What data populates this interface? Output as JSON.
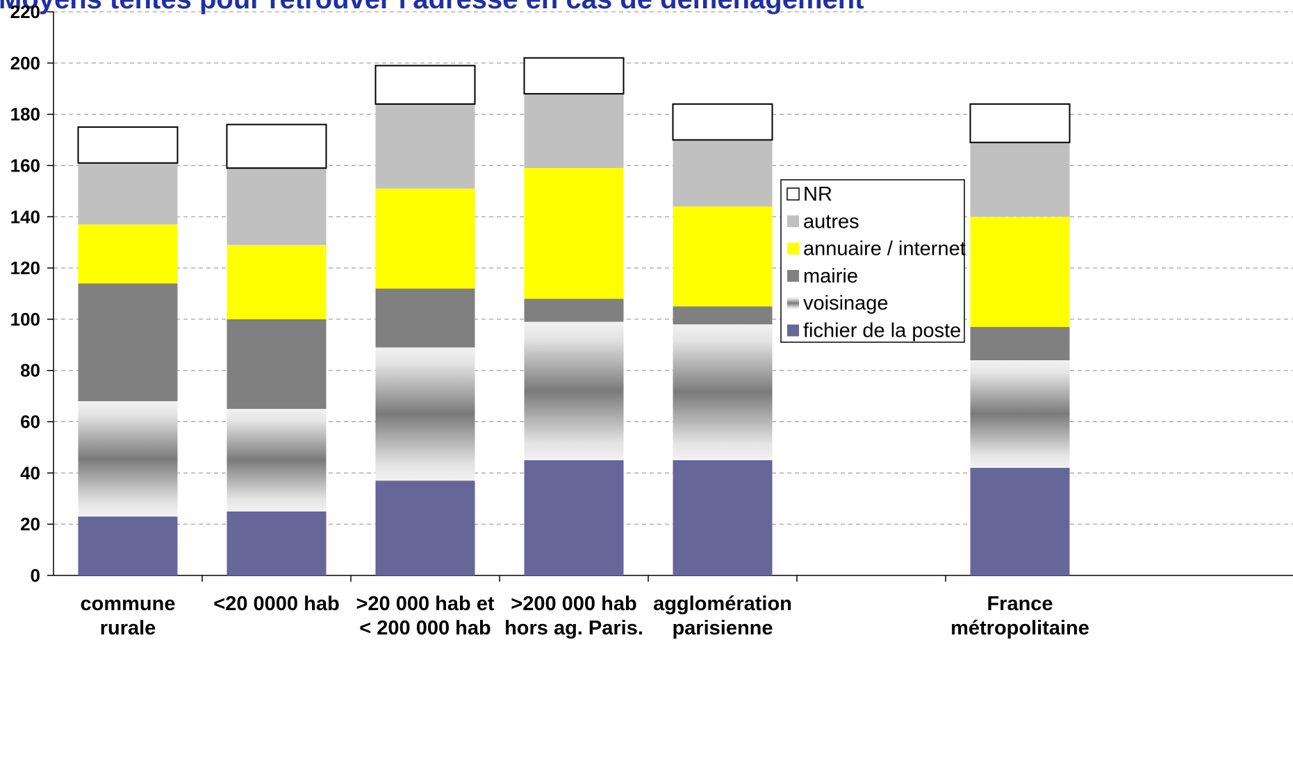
{
  "chart_data": {
    "type": "bar",
    "stacked": true,
    "title": "Moyens tentés pour retrouver l'adresse en cas de déménagement",
    "categories": [
      [
        "commune",
        "rurale"
      ],
      [
        "<20 0000 hab"
      ],
      [
        ">20 000 hab et",
        "< 200 000 hab"
      ],
      [
        ">200 000 hab",
        "hors ag. Paris."
      ],
      [
        "agglomération",
        "parisienne"
      ],
      [
        ""
      ],
      [
        "France",
        "métropolitaine"
      ]
    ],
    "ylim": [
      0,
      220
    ],
    "yticks": [
      0,
      20,
      40,
      60,
      80,
      100,
      120,
      140,
      160,
      180,
      200,
      220
    ],
    "grid": true,
    "legend_position": "right",
    "series": [
      {
        "name": "fichier de la poste",
        "color": "#666699",
        "values": [
          23,
          25,
          37,
          45,
          45,
          null,
          42
        ]
      },
      {
        "name": "voisinage",
        "color": "gradient-gray",
        "values": [
          45,
          40,
          52,
          54,
          53,
          null,
          42
        ]
      },
      {
        "name": "mairie",
        "color": "#808080",
        "values": [
          46,
          35,
          23,
          9,
          7,
          null,
          13
        ]
      },
      {
        "name": "annuaire / internet",
        "color": "#ffff00",
        "values": [
          23,
          29,
          39,
          51,
          39,
          null,
          43
        ]
      },
      {
        "name": "autres",
        "color": "#c0c0c0",
        "values": [
          24,
          30,
          33,
          29,
          26,
          null,
          29
        ]
      },
      {
        "name": "NR",
        "color": "#ffffff",
        "values": [
          14,
          17,
          15,
          14,
          14,
          null,
          15
        ]
      }
    ]
  }
}
